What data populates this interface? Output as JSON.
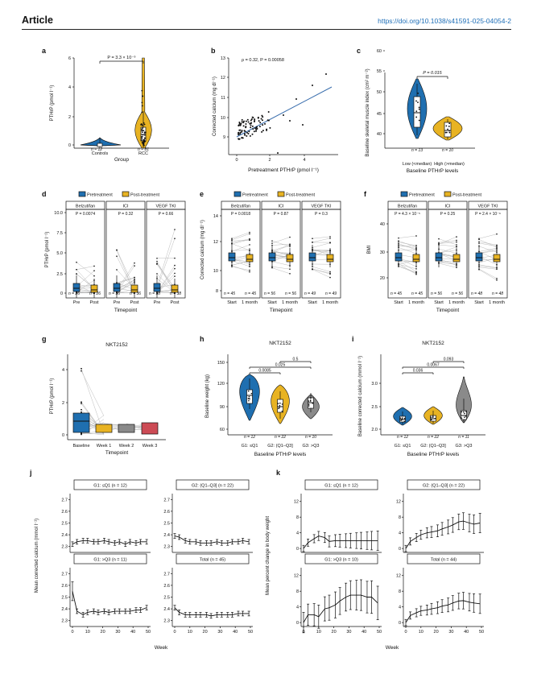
{
  "header": {
    "title": "Article",
    "doi": "https://doi.org/10.1038/s41591-025-04054-2"
  },
  "colors": {
    "blue": "#1f6fb0",
    "orange": "#e8b323",
    "gray": "#8a8a8a",
    "red": "#cc4b55",
    "line": "#3b6fae"
  },
  "panel_letters": [
    "a",
    "b",
    "c",
    "d",
    "e",
    "f",
    "g",
    "h",
    "i",
    "j",
    "k"
  ],
  "a": {
    "ylabel": "PTHrP (pmol l⁻¹)",
    "xlabel": "Group",
    "categories": [
      "Controls",
      "RCC"
    ],
    "n": [
      "n = 12",
      "n = 81"
    ],
    "p": "P = 3.3 × 10⁻⁹",
    "yticks": [
      "0",
      "2",
      "4",
      "6"
    ]
  },
  "b": {
    "xlabel": "Pretreatment PTHrP (pmol l⁻¹)",
    "ylabel": "Corrected calcium (mg dl⁻¹)",
    "stats": "ρ = 0.32, P = 0.00058",
    "xticks": [
      "0",
      "2",
      "4"
    ],
    "yticks": [
      "9",
      "10",
      "11",
      "12",
      "13"
    ]
  },
  "c": {
    "ylabel": "Baseline skeletal muscle index (cm² m⁻²)",
    "xlabel": "Baseline PTHrP levels",
    "categories": [
      "Low (<median)",
      "High (>median)"
    ],
    "n": [
      "n = 13",
      "n = 10"
    ],
    "p": "P = 0.015",
    "yticks": [
      "40",
      "45",
      "50",
      "55",
      "60"
    ]
  },
  "legend": {
    "pre": "Pretreatment",
    "post": "Post-treatment"
  },
  "d": {
    "ylabel": "PTHrP (pmol l⁻¹)",
    "xlabel": "Timepoint",
    "groups": [
      "Belzutifan",
      "ICI",
      "VEGF TKI"
    ],
    "p": [
      "P = 0.0074",
      "P = 0.32",
      "P = 0.66"
    ],
    "n": [
      "n = 26",
      "n = 26",
      "n = 36",
      "n = 36",
      "n = 38",
      "n = 38"
    ],
    "xcat": [
      "Pre",
      "Post"
    ],
    "yticks": [
      "0",
      "2.5",
      "5.0",
      "7.5",
      "10.0"
    ]
  },
  "e": {
    "ylabel": "Corrected calcium (mg dl⁻¹)",
    "xlabel": "Timepoint",
    "groups": [
      "Belzutifan",
      "ICI",
      "VEGF TKI"
    ],
    "p": [
      "P = 0.0018",
      "P = 0.87",
      "P = 0.3"
    ],
    "n": [
      "n = 45",
      "n = 45",
      "n = 56",
      "n = 56",
      "n = 49",
      "n = 49"
    ],
    "xcat": [
      "Start",
      "1 month"
    ],
    "yticks": [
      "8",
      "10",
      "12",
      "14"
    ]
  },
  "f": {
    "ylabel": "BMI",
    "xlabel": "Timepoint",
    "groups": [
      "Belzutifan",
      "ICI",
      "VEGF TKI"
    ],
    "p": [
      "P = 4.3 × 10⁻⁵",
      "P = 0.25",
      "P = 2.4 × 10⁻⁶"
    ],
    "n": [
      "n = 45",
      "n = 45",
      "n = 56",
      "n = 56",
      "n = 48",
      "n = 48"
    ],
    "xcat": [
      "Start",
      "1 month"
    ],
    "yticks": [
      "20",
      "30",
      "40"
    ]
  },
  "g": {
    "title": "NKT2152",
    "ylabel": "PTHrP (pmol l⁻¹)",
    "xlabel": "Timepoint",
    "categories": [
      "Baseline",
      "Week 1",
      "Week 2",
      "Week 3"
    ],
    "yticks": [
      "0",
      "2",
      "4"
    ]
  },
  "h": {
    "title": "NKT2152",
    "ylabel": "Baseline weight (kg)",
    "xlabel": "Baseline PTHrP levels",
    "categories": [
      "G1: ≤Q1",
      "G2: (Q1–Q3]",
      "G3: >Q3"
    ],
    "n": [
      "n = 12",
      "n = 22",
      "n = 10"
    ],
    "p": [
      "0.0085",
      "0.025",
      "0.5"
    ],
    "yticks": [
      "60",
      "90",
      "120",
      "150"
    ]
  },
  "i": {
    "title": "NKT2152",
    "ylabel": "Baseline corrected calcium (mmol l⁻¹)",
    "xlabel": "Baseline PTHrP levels",
    "categories": [
      "G1: ≤Q1",
      "G2: (Q1–Q3]",
      "G3: >Q3"
    ],
    "n": [
      "n = 12",
      "n = 22",
      "n = 11"
    ],
    "p": [
      "0.036",
      "0.0067",
      "0.093"
    ],
    "yticks": [
      "2.0",
      "2.5",
      "3.0"
    ]
  },
  "j": {
    "ylabel": "Mean corrected calcium (mmol l⁻¹)",
    "xlabel": "Week",
    "facets": [
      "G1: ≤Q1 (n = 12)",
      "G2: (Q1–Q3] (n = 22)",
      "G1: >Q3 (n = 11)",
      "Total (n = 45)"
    ],
    "yticks": [
      "2.3",
      "2.4",
      "2.5",
      "2.6",
      "2.7"
    ],
    "xticks": [
      "0",
      "10",
      "20",
      "30",
      "40",
      "50"
    ]
  },
  "k": {
    "ylabel": "Mean percent change in body weight",
    "xlabel": "Week",
    "facets": [
      "G1: ≤Q1 (n = 12)",
      "G2: (Q1–Q3] (n = 22)",
      "G1: >Q3 (n = 10)",
      "Total (n = 44)"
    ],
    "yticks": [
      "0",
      "4",
      "8",
      "12"
    ],
    "xticks": [
      "0",
      "10",
      "20",
      "30",
      "40",
      "50"
    ]
  },
  "chart_data": [
    {
      "panel": "j",
      "type": "line",
      "x": [
        0,
        3,
        7,
        10,
        14,
        17,
        21,
        24,
        28,
        31,
        35,
        38,
        42,
        45,
        49
      ],
      "series": [
        {
          "name": "G1: ≤Q1 (n = 12)",
          "values": [
            2.32,
            2.34,
            2.35,
            2.35,
            2.34,
            2.34,
            2.35,
            2.34,
            2.33,
            2.34,
            2.32,
            2.34,
            2.33,
            2.34,
            2.34
          ]
        },
        {
          "name": "G2: (Q1–Q3] (n = 22)",
          "values": [
            2.39,
            2.38,
            2.35,
            2.34,
            2.34,
            2.33,
            2.33,
            2.33,
            2.34,
            2.33,
            2.33,
            2.34,
            2.34,
            2.35,
            2.34
          ]
        },
        {
          "name": "G1: >Q3 (n = 11)",
          "values": [
            2.55,
            2.38,
            2.35,
            2.37,
            2.38,
            2.37,
            2.38,
            2.37,
            2.38,
            2.38,
            2.38,
            2.38,
            2.39,
            2.39,
            2.41
          ]
        },
        {
          "name": "Total (n = 45)",
          "values": [
            2.41,
            2.37,
            2.35,
            2.35,
            2.35,
            2.35,
            2.35,
            2.34,
            2.35,
            2.35,
            2.35,
            2.35,
            2.36,
            2.36,
            2.36
          ]
        }
      ],
      "ylim": [
        2.25,
        2.75
      ],
      "xlim": [
        0,
        50
      ]
    },
    {
      "panel": "k",
      "type": "line",
      "x": [
        0,
        3,
        7,
        10,
        14,
        17,
        21,
        24,
        28,
        31,
        35,
        38,
        42,
        45,
        49
      ],
      "series": [
        {
          "name": "G1: ≤Q1 (n = 12)",
          "values": [
            0,
            1.5,
            2.5,
            3.2,
            2.8,
            1.8,
            2.0,
            2.0,
            2.0,
            2.0,
            2.0,
            2.0,
            2.0,
            2.0,
            2.0
          ]
        },
        {
          "name": "G2: (Q1–Q3] (n = 22)",
          "values": [
            0,
            1.8,
            2.8,
            3.5,
            4.0,
            4.2,
            4.5,
            5.0,
            5.5,
            6.0,
            6.8,
            7.0,
            6.5,
            6.2,
            6.5
          ]
        },
        {
          "name": "G1: >Q3 (n = 10)",
          "values": [
            0,
            2.0,
            2.0,
            1.5,
            3.5,
            3.8,
            4.5,
            5.5,
            6.5,
            7.0,
            7.0,
            7.0,
            6.5,
            6.5,
            5.0
          ]
        },
        {
          "name": "Total (n = 44)",
          "values": [
            0,
            1.8,
            2.5,
            3.0,
            3.2,
            3.5,
            3.8,
            4.2,
            4.5,
            5.0,
            5.5,
            5.6,
            5.2,
            5.0,
            4.8
          ]
        }
      ],
      "ylim": [
        -1,
        14
      ],
      "xlim": [
        0,
        50
      ]
    }
  ]
}
